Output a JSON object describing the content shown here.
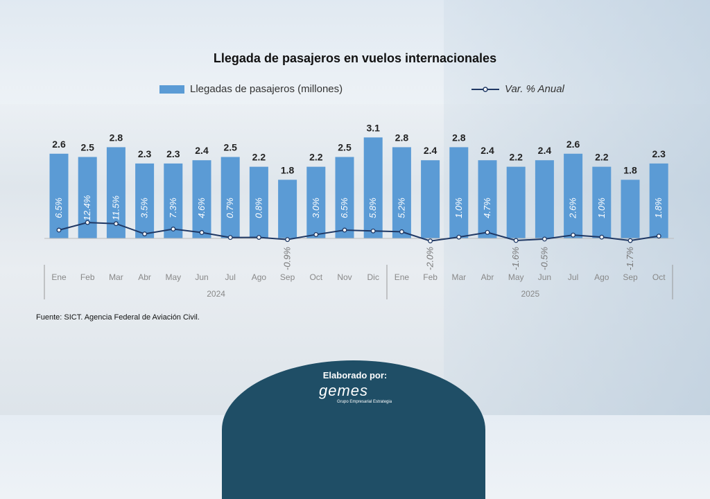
{
  "chart_data": {
    "type": "bar",
    "title": "Llegada de pasajeros en vuelos internacionales",
    "categories": [
      "Ene",
      "Feb",
      "Mar",
      "Abr",
      "May",
      "Jun",
      "Jul",
      "Ago",
      "Sep",
      "Oct",
      "Nov",
      "Dic",
      "Ene",
      "Feb",
      "Mar",
      "Abr",
      "May",
      "Jun",
      "Jul",
      "Ago",
      "Sep",
      "Oct"
    ],
    "groups": [
      {
        "label": "2024",
        "count": 12
      },
      {
        "label": "2025",
        "count": 10
      }
    ],
    "series": [
      {
        "name": "Llegadas de pasajeros (millones)",
        "type": "bar",
        "color": "#5b9bd5",
        "values": [
          2.6,
          2.5,
          2.8,
          2.3,
          2.3,
          2.4,
          2.5,
          2.2,
          1.8,
          2.2,
          2.5,
          3.1,
          2.8,
          2.4,
          2.8,
          2.4,
          2.2,
          2.4,
          2.6,
          2.2,
          1.8,
          2.3
        ]
      },
      {
        "name": "Var. % Anual",
        "type": "line",
        "color": "#1f3864",
        "values": [
          6.5,
          12.4,
          11.5,
          3.5,
          7.3,
          4.6,
          0.7,
          0.8,
          -0.9,
          3.0,
          6.5,
          5.8,
          5.2,
          -2.0,
          1.0,
          4.7,
          -1.6,
          -0.5,
          2.6,
          1.0,
          -1.7,
          1.8
        ]
      }
    ]
  },
  "source": "Fuente: SICT. Agencia Federal de Aviación Civil.",
  "credit": {
    "label": "Elaborado por:",
    "logo_text": "gemes",
    "logo_sub": "Grupo Empresarial Estrategia"
  }
}
